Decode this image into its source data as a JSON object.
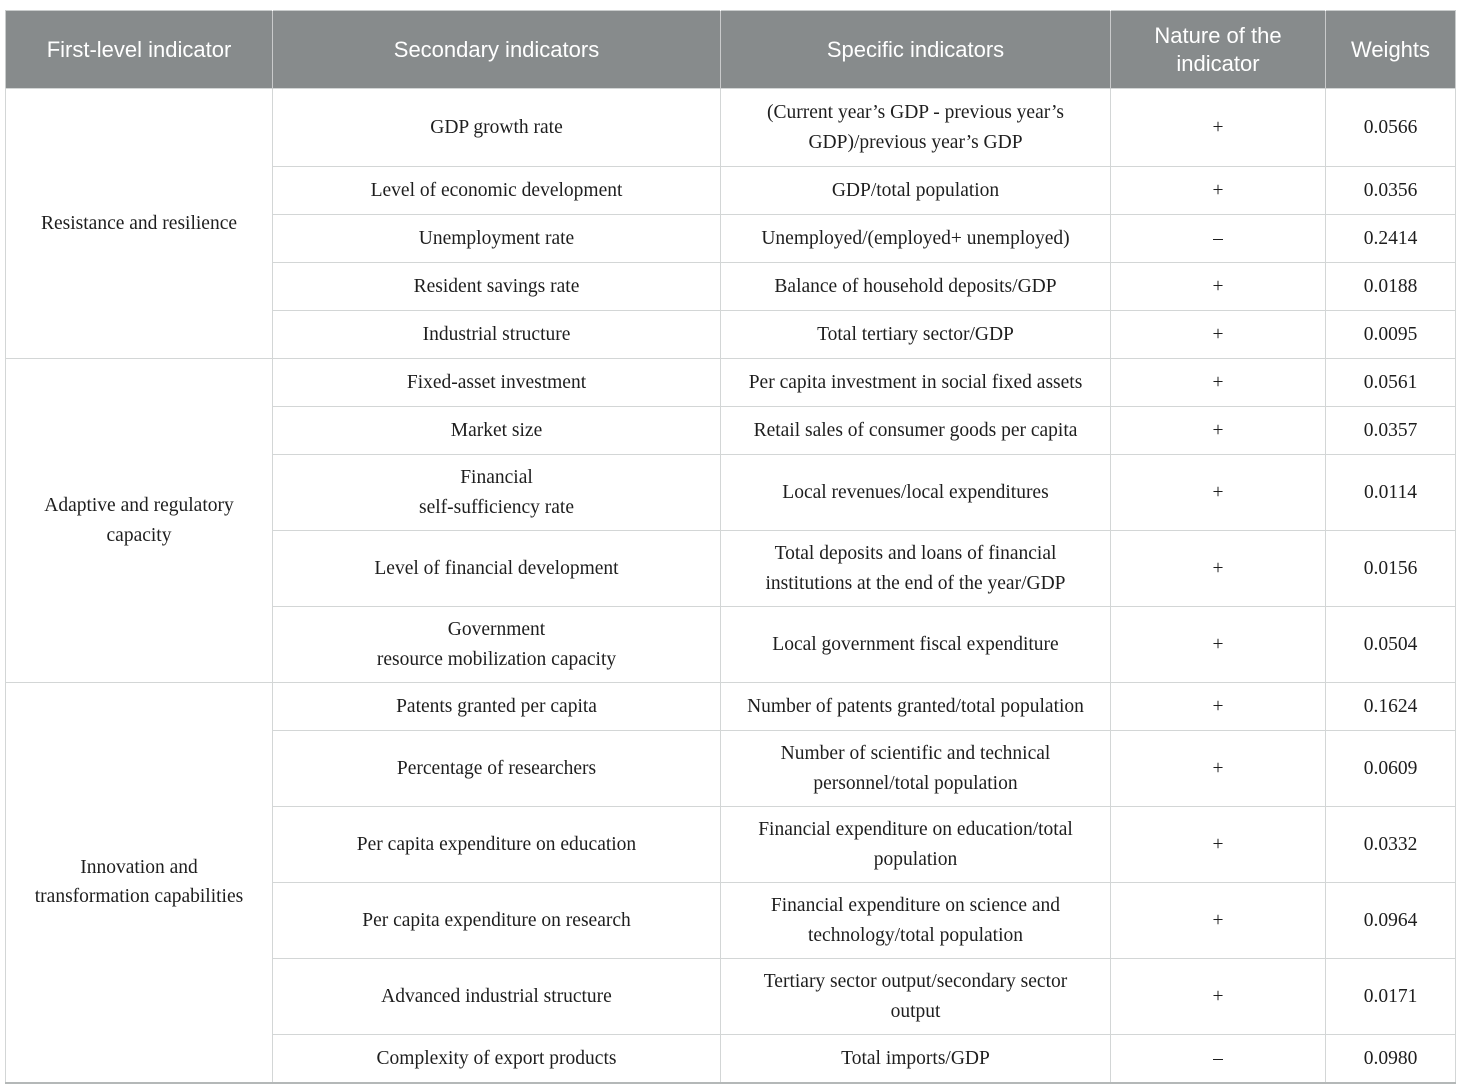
{
  "colors": {
    "header_bg": "#878b8c",
    "header_text": "#ffffff",
    "body_text": "#1e1e1e",
    "border": "#d3d6d6"
  },
  "table": {
    "header": {
      "first_level": "First-level indicator",
      "secondary": "Secondary indicators",
      "specific": "Specific indicators",
      "nature": "Nature of the\nindicator",
      "weights": "Weights"
    },
    "groups": [
      {
        "first_level": "Resistance and resilience",
        "rows": [
          {
            "secondary": "GDP growth rate",
            "specific": "(Current year’s GDP - previous year’s\nGDP)/previous year’s GDP",
            "nature": "+",
            "weight": "0.0566"
          },
          {
            "secondary": "Level of economic development",
            "specific": "GDP/total population",
            "nature": "+",
            "weight": "0.0356"
          },
          {
            "secondary": "Unemployment rate",
            "specific": "Unemployed/(employed+ unemployed)",
            "nature": "–",
            "weight": "0.2414"
          },
          {
            "secondary": "Resident savings rate",
            "specific": "Balance of household deposits/GDP",
            "nature": "+",
            "weight": "0.0188"
          },
          {
            "secondary": "Industrial structure",
            "specific": "Total tertiary sector/GDP",
            "nature": "+",
            "weight": "0.0095"
          }
        ]
      },
      {
        "first_level": "Adaptive and regulatory\ncapacity",
        "rows": [
          {
            "secondary": "Fixed-asset investment",
            "specific": "Per capita investment in social fixed assets",
            "nature": "+",
            "weight": "0.0561"
          },
          {
            "secondary": "Market size",
            "specific": "Retail sales of consumer goods per capita",
            "nature": "+",
            "weight": "0.0357"
          },
          {
            "secondary": "Financial\nself-sufficiency rate",
            "specific": "Local revenues/local expenditures",
            "nature": "+",
            "weight": "0.0114"
          },
          {
            "secondary": "Level of financial development",
            "specific": "Total deposits and loans of financial\ninstitutions at the end of the year/GDP",
            "nature": "+",
            "weight": "0.0156"
          },
          {
            "secondary": "Government\nresource mobilization capacity",
            "specific": "Local government fiscal expenditure",
            "nature": "+",
            "weight": "0.0504"
          }
        ]
      },
      {
        "first_level": "Innovation and\ntransformation capabilities",
        "rows": [
          {
            "secondary": "Patents granted per capita",
            "specific": "Number of patents granted/total population",
            "nature": "+",
            "weight": "0.1624"
          },
          {
            "secondary": "Percentage of researchers",
            "specific": "Number of scientific and technical\npersonnel/total population",
            "nature": "+",
            "weight": "0.0609"
          },
          {
            "secondary": "Per capita expenditure on education",
            "specific": "Financial expenditure on education/total\npopulation",
            "nature": "+",
            "weight": "0.0332"
          },
          {
            "secondary": "Per capita expenditure on research",
            "specific": "Financial expenditure on science and\ntechnology/total population",
            "nature": "+",
            "weight": "0.0964"
          },
          {
            "secondary": "Advanced industrial structure",
            "specific": "Tertiary sector output/secondary sector\noutput",
            "nature": "+",
            "weight": "0.0171"
          },
          {
            "secondary": "Complexity of export products",
            "specific": "Total imports/GDP",
            "nature": "–",
            "weight": "0.0980"
          }
        ]
      }
    ]
  }
}
